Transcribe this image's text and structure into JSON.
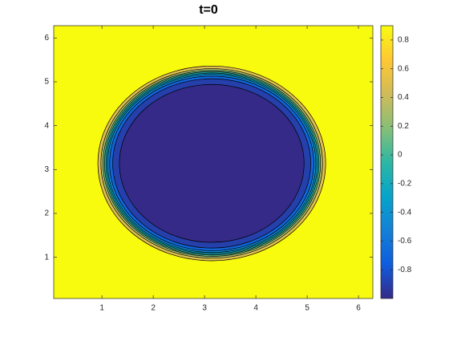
{
  "chart_data": {
    "type": "contourf",
    "title": "t=0",
    "xlim": [
      0.06,
      6.28
    ],
    "ylim": [
      0.06,
      6.28
    ],
    "xticks": [
      1,
      2,
      3,
      4,
      5,
      6
    ],
    "yticks": [
      1,
      2,
      3,
      4,
      5,
      6
    ],
    "center": [
      3.14,
      3.14
    ],
    "outside_value": 0.9,
    "inside_value": -1,
    "contours": [
      {
        "level": 0.7,
        "radius": 2.22
      },
      {
        "level": 0.5,
        "radius": 2.16
      },
      {
        "level": 0.3,
        "radius": 2.12
      },
      {
        "level": 0.1,
        "radius": 2.09
      },
      {
        "level": -0.1,
        "radius": 2.06
      },
      {
        "level": -0.3,
        "radius": 2.03
      },
      {
        "level": -0.5,
        "radius": 1.99
      },
      {
        "level": -0.7,
        "radius": 1.93
      },
      {
        "level": -0.9,
        "radius": 1.8
      }
    ],
    "clim": [
      -1,
      0.9
    ],
    "cticks": [
      -0.8,
      -0.6,
      -0.4,
      -0.2,
      0,
      0.2,
      0.4,
      0.6,
      0.8
    ],
    "colormap": [
      "#352a87",
      "#0f5cdd",
      "#1481d6",
      "#06a4ca",
      "#2eb7a4",
      "#87bf77",
      "#d1bb59",
      "#fec832",
      "#f9fb0e"
    ]
  }
}
